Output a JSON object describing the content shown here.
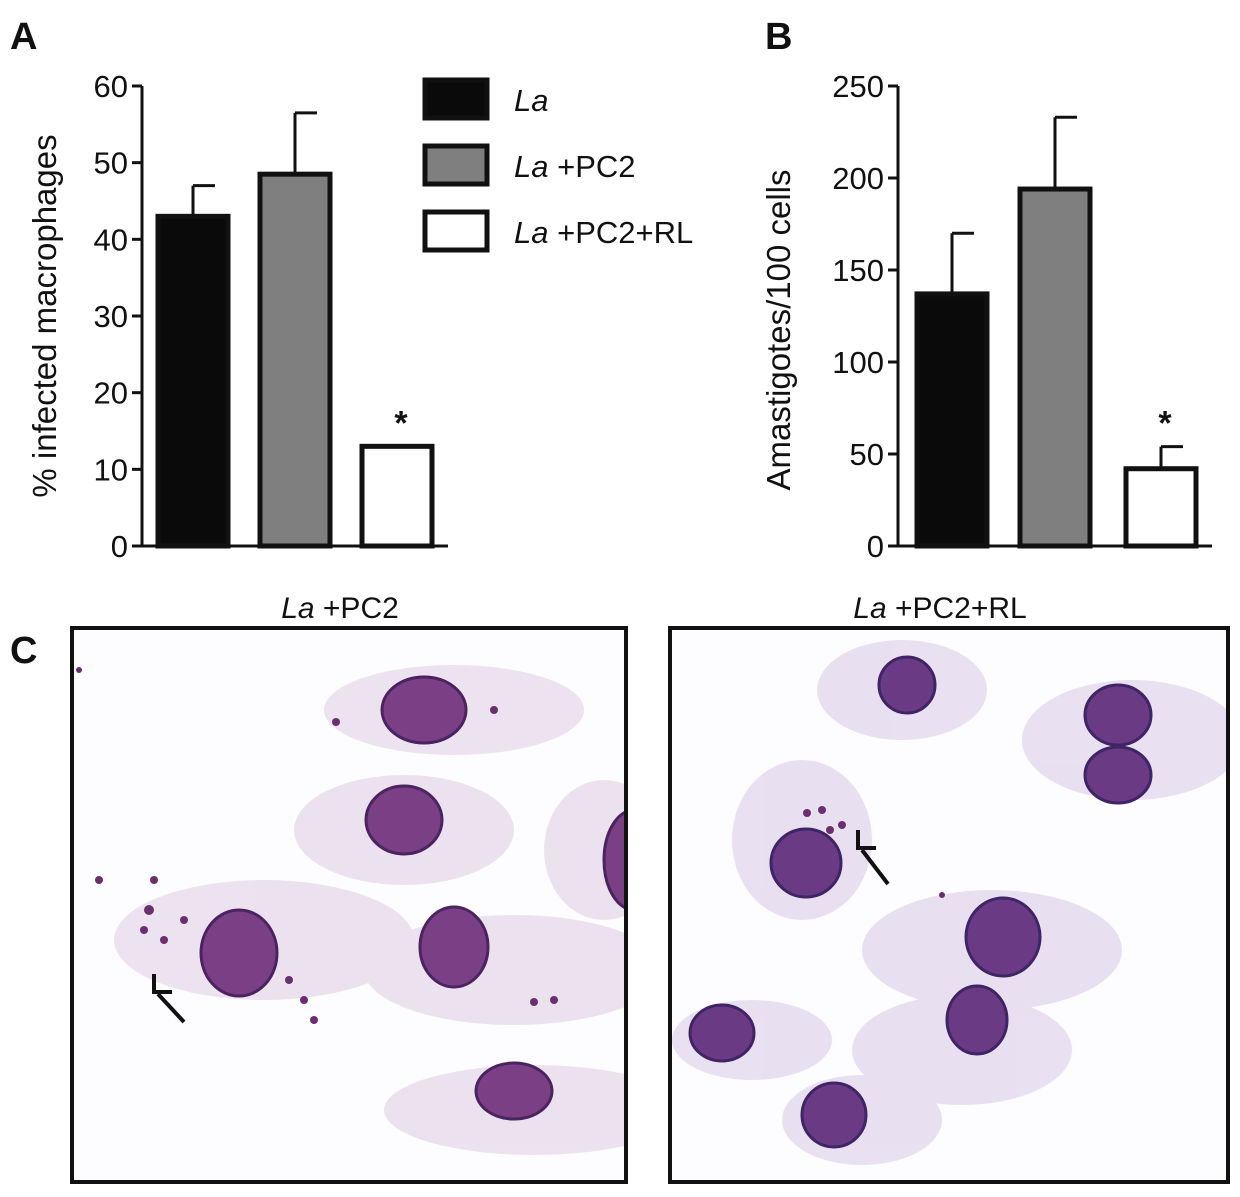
{
  "panel_labels": {
    "a": "A",
    "b": "B",
    "c": "C"
  },
  "legend": [
    {
      "italic": "La",
      "rest": "",
      "color": "#0a0a0a"
    },
    {
      "italic": "La",
      "rest": " +PC2",
      "color": "#7f7f7f"
    },
    {
      "italic": "La",
      "rest": " +PC2+RL",
      "color": "#ffffff"
    }
  ],
  "chart_data": [
    {
      "type": "bar",
      "categories": [
        "La",
        "La +PC2",
        "La +PC2+RL"
      ],
      "values": [
        43,
        48.5,
        13
      ],
      "errors": [
        4,
        8,
        0
      ],
      "colors": [
        "#0a0a0a",
        "#7f7f7f",
        "#ffffff"
      ],
      "significance": [
        "",
        "",
        "*"
      ],
      "ylabel": "% infected macrophages",
      "ylim": [
        0,
        60
      ],
      "yticks": [
        0,
        10,
        20,
        30,
        40,
        50,
        60
      ],
      "grid": false
    },
    {
      "type": "bar",
      "categories": [
        "La",
        "La +PC2",
        "La +PC2+RL"
      ],
      "values": [
        137,
        194,
        42
      ],
      "errors": [
        33,
        39,
        12
      ],
      "colors": [
        "#0a0a0a",
        "#7f7f7f",
        "#ffffff"
      ],
      "significance": [
        "",
        "",
        "*"
      ],
      "ylabel": "Amastigotes/100 cells",
      "ylim": [
        0,
        250
      ],
      "yticks": [
        0,
        50,
        100,
        150,
        200,
        250
      ],
      "grid": false
    }
  ],
  "micrographs": [
    {
      "italic": "La",
      "rest": " +PC2"
    },
    {
      "italic": "La",
      "rest": " +PC2+RL"
    }
  ]
}
